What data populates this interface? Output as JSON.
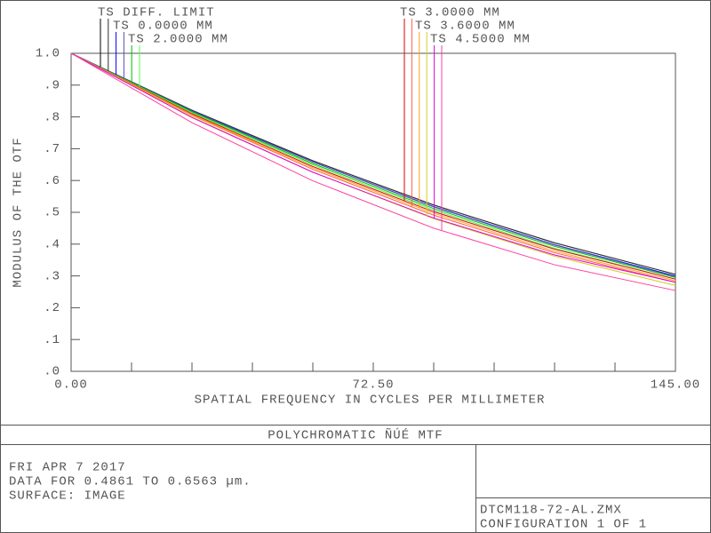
{
  "chart_data": {
    "type": "line",
    "xlabel": "SPATIAL FREQUENCY IN CYCLES PER MILLIMETER",
    "ylabel": "MODULUS OF THE OTF",
    "x": [
      0,
      29,
      58,
      87,
      116,
      145
    ],
    "xlim": [
      0,
      145
    ],
    "ylim": [
      0,
      1
    ],
    "xticks": [
      {
        "value": 0,
        "label": "0.00"
      },
      {
        "value": 14.5,
        "label": null
      },
      {
        "value": 29,
        "label": null
      },
      {
        "value": 43.5,
        "label": null
      },
      {
        "value": 58,
        "label": null
      },
      {
        "value": 72.5,
        "label": "72.50"
      },
      {
        "value": 87,
        "label": null
      },
      {
        "value": 101.5,
        "label": null
      },
      {
        "value": 116,
        "label": null
      },
      {
        "value": 130.5,
        "label": null
      },
      {
        "value": 145,
        "label": "145.00"
      }
    ],
    "yticks": [
      {
        "value": 0,
        "label": ".0"
      },
      {
        "value": 0.1,
        "label": ".1"
      },
      {
        "value": 0.2,
        "label": ".2"
      },
      {
        "value": 0.3,
        "label": ".3"
      },
      {
        "value": 0.4,
        "label": ".4"
      },
      {
        "value": 0.5,
        "label": ".5"
      },
      {
        "value": 0.6,
        "label": ".6"
      },
      {
        "value": 0.7,
        "label": ".7"
      },
      {
        "value": 0.8,
        "label": ".8"
      },
      {
        "value": 0.9,
        "label": ".9"
      },
      {
        "value": 1,
        "label": "1.0"
      }
    ],
    "series": [
      {
        "name": "TS DIFF. LIMIT",
        "lines": [
          {
            "color": "#000000",
            "values": [
              1,
              0.821,
              0.662,
              0.523,
              0.404,
              0.305
            ]
          },
          {
            "color": "#303030",
            "values": [
              1,
              0.821,
              0.662,
              0.523,
              0.404,
              0.305
            ]
          }
        ]
      },
      {
        "name": "TS 0.0000 MM",
        "lines": [
          {
            "color": "#0000ff",
            "values": [
              1,
              0.818,
              0.658,
              0.518,
              0.398,
              0.3
            ]
          },
          {
            "color": "#5050c0",
            "values": [
              1,
              0.819,
              0.658,
              0.517,
              0.397,
              0.298
            ]
          }
        ]
      },
      {
        "name": "TS 2.0000 MM",
        "lines": [
          {
            "color": "#00c000",
            "values": [
              1,
              0.816,
              0.653,
              0.512,
              0.393,
              0.295
            ]
          },
          {
            "color": "#50ff50",
            "values": [
              1,
              0.813,
              0.649,
              0.507,
              0.387,
              0.29
            ]
          }
        ]
      },
      {
        "name": "TS 3.0000 MM",
        "lines": [
          {
            "color": "#e00000",
            "values": [
              1,
              0.81,
              0.644,
              0.502,
              0.384,
              0.29
            ]
          },
          {
            "color": "#ff6040",
            "values": [
              1,
              0.805,
              0.635,
              0.491,
              0.373,
              0.28
            ]
          }
        ]
      },
      {
        "name": "TS 3.6000 MM",
        "lines": [
          {
            "color": "#ffa020",
            "values": [
              1,
              0.807,
              0.64,
              0.497,
              0.378,
              0.285
            ]
          },
          {
            "color": "#d0d020",
            "values": [
              1,
              0.8,
              0.626,
              0.48,
              0.362,
              0.27
            ]
          }
        ]
      },
      {
        "name": "TS 4.5000 MM",
        "lines": [
          {
            "color": "#e000e0",
            "values": [
              1,
              0.798,
              0.626,
              0.482,
              0.366,
              0.28
            ]
          },
          {
            "color": "#ff40a0",
            "values": [
              1,
              0.782,
              0.599,
              0.45,
              0.335,
              0.254
            ]
          }
        ]
      }
    ]
  },
  "footer": {
    "title": "POLYCHROMATIC ÑÚÉ  MTF",
    "info": [
      "FRI APR 7 2017",
      "DATA FOR 0.4861 TO 0.6563 µm.",
      "SURFACE: IMAGE"
    ],
    "file": "DTCM118-72-AL.ZMX",
    "config": "CONFIGURATION 1 OF 1"
  }
}
